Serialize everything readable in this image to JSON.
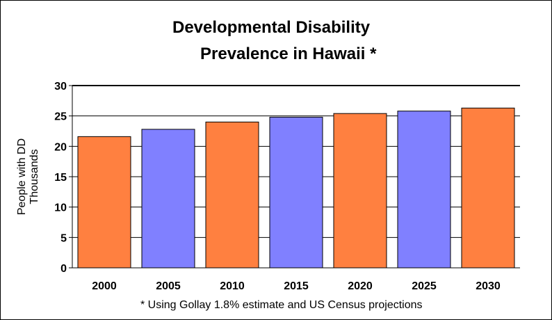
{
  "chart_data": {
    "type": "bar",
    "title_lines": [
      "Developmental Disability",
      "Prevalence in Hawaii *"
    ],
    "ylabel_lines": [
      "People with DD",
      "Thousands"
    ],
    "xlabel": "",
    "categories": [
      "2000",
      "2005",
      "2010",
      "2015",
      "2020",
      "2025",
      "2030"
    ],
    "values": [
      21.6,
      22.8,
      24.0,
      24.8,
      25.4,
      25.8,
      26.3
    ],
    "bar_colors": [
      "#FF8040",
      "#8080FF",
      "#FF8040",
      "#8080FF",
      "#FF8040",
      "#8080FF",
      "#FF8040"
    ],
    "ylim": [
      0,
      30
    ],
    "yticks": [
      0,
      5,
      10,
      15,
      20,
      25,
      30
    ],
    "grid": true,
    "legend": "none",
    "footnote": "* Using Gollay 1.8% estimate and US Census projections"
  }
}
